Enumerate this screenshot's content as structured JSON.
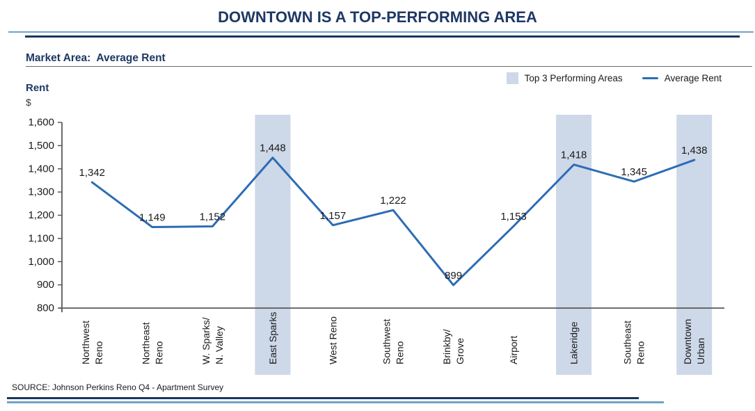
{
  "title": "DOWNTOWN IS A TOP-PERFORMING AREA",
  "section_heading": "Market Area:  Average Rent",
  "y_axis": {
    "title": "Rent",
    "unit": "$"
  },
  "source": "SOURCE: Johnson Perkins Reno Q4 - Apartment Survey",
  "colors": {
    "navy_text": "#1F3864",
    "dark_rule": "#17375D",
    "light_rule": "#74A1C8",
    "line": "#2D6CB5",
    "band": "#CDD8E8",
    "axis": "#595959",
    "label_text": "#1a1a1a"
  },
  "chart_data": {
    "type": "line",
    "title": "Market Area:  Average Rent",
    "xlabel": "",
    "ylabel": "Rent $",
    "categories": [
      "Northwest\nReno",
      "Northeast\nReno",
      "W. Sparks/\nN. Valley",
      "East Sparks",
      "West Reno",
      "Southwest\nReno",
      "Brinkby/\nGrove",
      "Airport",
      "Lakeridge",
      "Southeast\nReno",
      "Downtown\nUrban"
    ],
    "values": [
      1342,
      1149,
      1152,
      1448,
      1157,
      1222,
      899,
      1153,
      1418,
      1345,
      1438
    ],
    "value_labels": [
      "1,342",
      "1,149",
      "1,152",
      "1,448",
      "1,157",
      "1,222",
      "899",
      "1,153",
      "1,418",
      "1,345",
      "1,438"
    ],
    "highlighted_categories": [
      "East Sparks",
      "Lakeridge",
      "Downtown Urban"
    ],
    "highlighted_indices": [
      3,
      8,
      10
    ],
    "ylim": [
      800,
      1600
    ],
    "ytick_step": 100,
    "ytick_labels": [
      "800",
      "900",
      "1,000",
      "1,100",
      "1,200",
      "1,300",
      "1,400",
      "1,500",
      "1,600"
    ],
    "grid": false,
    "legend_position": "top-right",
    "legend": {
      "band_label": "Top 3 Performing Areas",
      "line_label": "Average Rent"
    }
  }
}
